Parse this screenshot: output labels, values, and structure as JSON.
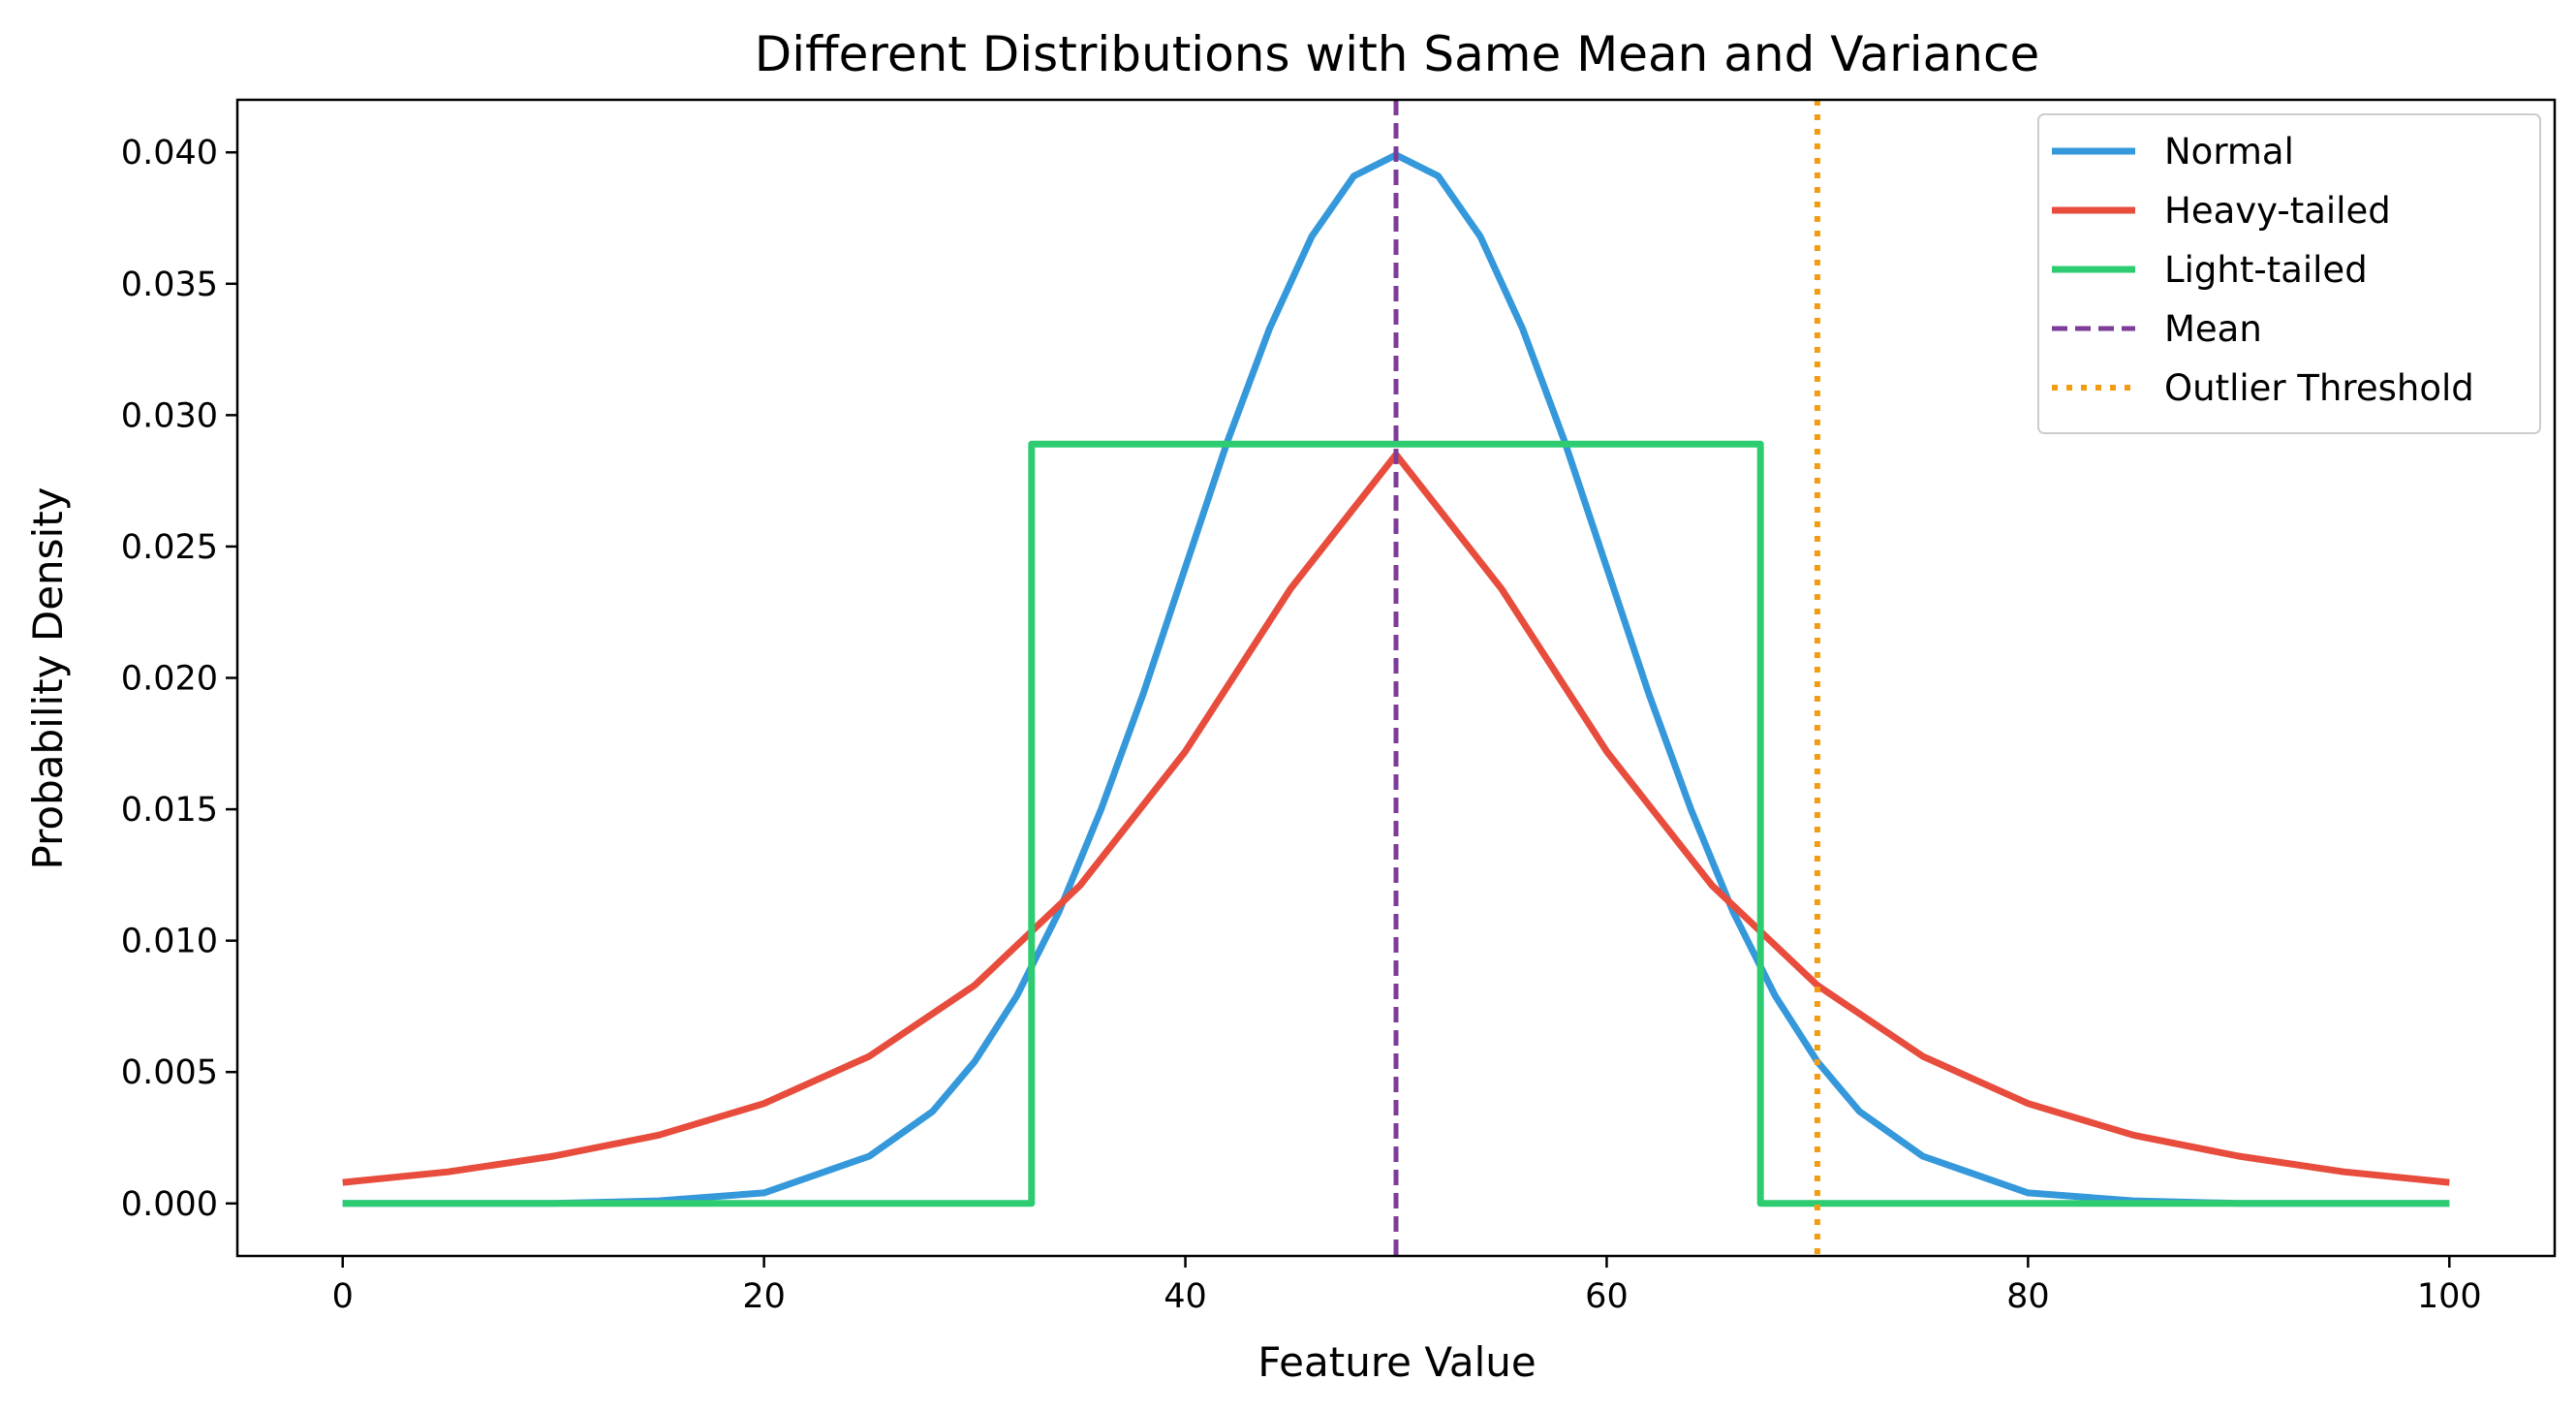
{
  "chart_data": {
    "type": "line",
    "title": "Different Distributions with Same Mean and Variance",
    "xlabel": "Feature Value",
    "ylabel": "Probability Density",
    "xlim": [
      -5,
      105
    ],
    "ylim": [
      -0.002,
      0.042
    ],
    "xticks": [
      0,
      20,
      40,
      60,
      80,
      100
    ],
    "yticks": [
      0.0,
      0.005,
      0.01,
      0.015,
      0.02,
      0.025,
      0.03,
      0.035,
      0.04
    ],
    "xtick_labels": [
      "0",
      "20",
      "40",
      "60",
      "80",
      "100"
    ],
    "ytick_labels": [
      "0.000",
      "0.005",
      "0.010",
      "0.015",
      "0.020",
      "0.025",
      "0.030",
      "0.035",
      "0.040"
    ],
    "grid": false,
    "legend_position": "top-right",
    "series": [
      {
        "name": "Normal",
        "color": "#3498db",
        "style": "solid",
        "x": [
          0,
          5,
          10,
          15,
          20,
          25,
          28,
          30,
          32,
          34,
          36,
          38,
          40,
          42,
          44,
          46,
          48,
          50,
          52,
          54,
          56,
          58,
          60,
          62,
          64,
          66,
          68,
          70,
          72,
          75,
          80,
          85,
          90,
          95,
          100
        ],
        "y": [
          0.0,
          0.0,
          0.0,
          0.0001,
          0.0004,
          0.0018,
          0.0035,
          0.0054,
          0.0079,
          0.0111,
          0.015,
          0.0194,
          0.0242,
          0.029,
          0.0333,
          0.0368,
          0.0391,
          0.0399,
          0.0391,
          0.0368,
          0.0333,
          0.029,
          0.0242,
          0.0194,
          0.015,
          0.0111,
          0.0079,
          0.0054,
          0.0035,
          0.0018,
          0.0004,
          0.0001,
          0.0,
          0.0,
          0.0
        ]
      },
      {
        "name": "Heavy-tailed",
        "color": "#e74c3c",
        "style": "solid",
        "x": [
          0,
          5,
          10,
          15,
          20,
          25,
          30,
          35,
          40,
          45,
          50,
          55,
          60,
          65,
          70,
          75,
          80,
          85,
          90,
          95,
          100
        ],
        "y": [
          0.0008,
          0.0012,
          0.0018,
          0.0026,
          0.0038,
          0.0056,
          0.0083,
          0.0121,
          0.0172,
          0.0234,
          0.0285,
          0.0234,
          0.0172,
          0.0121,
          0.0083,
          0.0056,
          0.0038,
          0.0026,
          0.0018,
          0.0012,
          0.0008
        ]
      },
      {
        "name": "Light-tailed",
        "color": "#2ecc71",
        "style": "solid",
        "x": [
          0,
          32.7,
          32.7,
          67.3,
          67.3,
          100
        ],
        "y": [
          0.0,
          0.0,
          0.0289,
          0.0289,
          0.0,
          0.0
        ]
      }
    ],
    "reference_lines": [
      {
        "name": "Mean",
        "x": 50,
        "color": "#7d3c98",
        "style": "dashed"
      },
      {
        "name": "Outlier Threshold",
        "x": 70,
        "color": "#f39c12",
        "style": "dotted"
      }
    ]
  }
}
